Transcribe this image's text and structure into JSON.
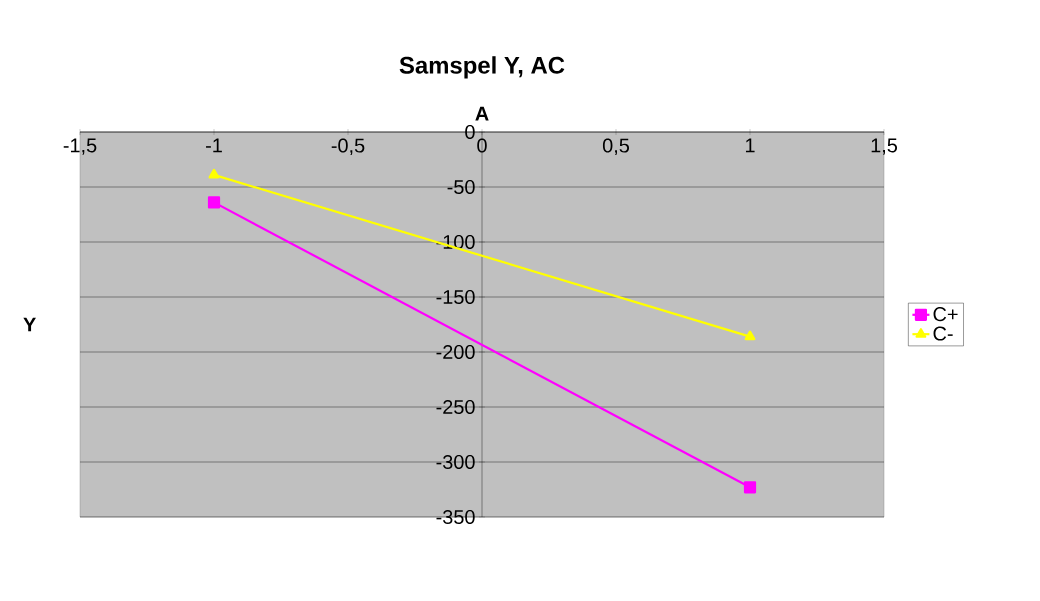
{
  "chart_data": {
    "type": "line",
    "title": "Samspel Y, AC",
    "xlabel": "A",
    "ylabel": "Y",
    "x": [
      -1,
      1
    ],
    "series": [
      {
        "name": "C+",
        "color": "#ff00ff",
        "marker": "square",
        "values": [
          -64,
          -323
        ]
      },
      {
        "name": "C-",
        "color": "#ffff00",
        "marker": "triangle",
        "values": [
          -39,
          -186
        ]
      }
    ],
    "xlim": [
      -1.5,
      1.5
    ],
    "ylim": [
      -350,
      0
    ],
    "xticks": [
      {
        "value": -1.5,
        "label": "-1,5"
      },
      {
        "value": -1,
        "label": "-1"
      },
      {
        "value": -0.5,
        "label": "-0,5"
      },
      {
        "value": 0,
        "label": "0"
      },
      {
        "value": 0.5,
        "label": "0,5"
      },
      {
        "value": 1,
        "label": "1"
      },
      {
        "value": 1.5,
        "label": "1,5"
      }
    ],
    "yticks": [
      0,
      -50,
      -100,
      -150,
      -200,
      -250,
      -300,
      -350
    ],
    "grid": "y",
    "legend": "right",
    "line_style": "solid"
  }
}
